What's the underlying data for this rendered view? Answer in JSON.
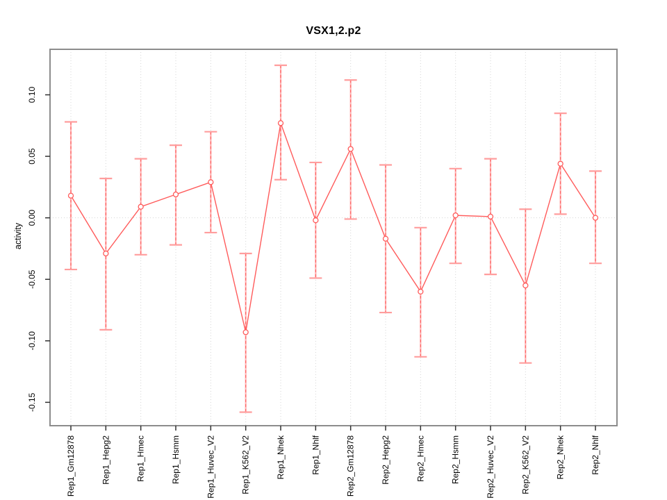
{
  "figure": {
    "title": "VSX1,2.p2"
  },
  "chart_data": {
    "type": "line",
    "title": "VSX1,2.p2",
    "xlabel": "",
    "ylabel": "activity",
    "legend": "none",
    "grid": "vertical dotted gridline at each category; horizontal dotted line at y=0",
    "marker": "open-circle",
    "error_bars": true,
    "ylim": [
      -0.169,
      0.137
    ],
    "yticks": [
      {
        "v": 0.1,
        "label": "0.10"
      },
      {
        "v": 0.05,
        "label": "0.05"
      },
      {
        "v": 0.0,
        "label": "0.00"
      },
      {
        "v": -0.05,
        "label": "-0.05"
      },
      {
        "v": -0.1,
        "label": "-0.10"
      },
      {
        "v": -0.15,
        "label": "-0.15"
      }
    ],
    "categories": [
      "Rep1_Gm12878",
      "Rep1_Hepg2",
      "Rep1_Hmec",
      "Rep1_Hsmm",
      "Rep1_Huvec_V2",
      "Rep1_K562_V2",
      "Rep1_Nhek",
      "Rep1_Nhlf",
      "Rep2_Gm12878",
      "Rep2_Hepg2",
      "Rep2_Hmec",
      "Rep2_Hsmm",
      "Rep2_Huvec_V2",
      "Rep2_K562_V2",
      "Rep2_Nhek",
      "Rep2_Nhlf"
    ],
    "series": [
      {
        "name": "activity",
        "values": [
          0.018,
          -0.029,
          0.009,
          0.019,
          0.029,
          -0.093,
          0.077,
          -0.002,
          0.056,
          -0.017,
          -0.06,
          0.002,
          0.001,
          -0.055,
          0.044,
          0.0
        ],
        "error_high": [
          0.078,
          0.032,
          0.048,
          0.059,
          0.07,
          -0.029,
          0.124,
          0.045,
          0.112,
          0.043,
          -0.008,
          0.04,
          0.048,
          0.007,
          0.085,
          0.038
        ],
        "error_low": [
          -0.042,
          -0.091,
          -0.03,
          -0.022,
          -0.012,
          -0.158,
          0.031,
          -0.049,
          -0.001,
          -0.077,
          -0.113,
          -0.037,
          -0.046,
          -0.118,
          0.003,
          -0.037
        ]
      }
    ],
    "colors": {
      "line": "#ff5b5b",
      "marker_stroke": "#ff5b5b",
      "marker_fill": "#ffffff",
      "error_bar_light": "#ffb3b3",
      "error_bar_dash": "#ff6060",
      "error_cap": "#ff9d9d",
      "gridline": "#d4d4d4",
      "zero_line": "#d4d4d4",
      "plot_border": "#8c8c8c",
      "tick": "#303030",
      "text": "#000000"
    }
  }
}
